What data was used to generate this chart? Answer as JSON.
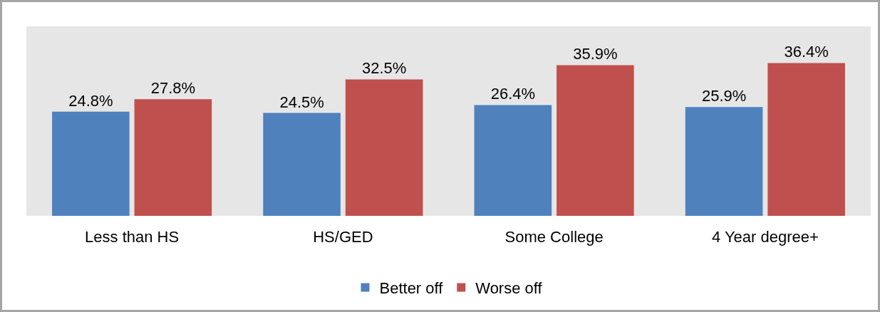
{
  "chart_data": {
    "type": "bar",
    "categories": [
      "Less than HS",
      "HS/GED",
      "Some College",
      "4 Year degree+"
    ],
    "series": [
      {
        "name": "Better off",
        "color": "#4f81bd",
        "values": [
          24.8,
          24.5,
          26.4,
          25.9
        ],
        "value_labels": [
          "24.8%",
          "24.5%",
          "26.4%",
          "25.9%"
        ]
      },
      {
        "name": "Worse off",
        "color": "#c0504d",
        "values": [
          27.8,
          32.5,
          35.9,
          36.4
        ],
        "value_labels": [
          "27.8%",
          "32.5%",
          "35.9%",
          "36.4%"
        ]
      }
    ],
    "grid": false,
    "legend": "bottom"
  }
}
